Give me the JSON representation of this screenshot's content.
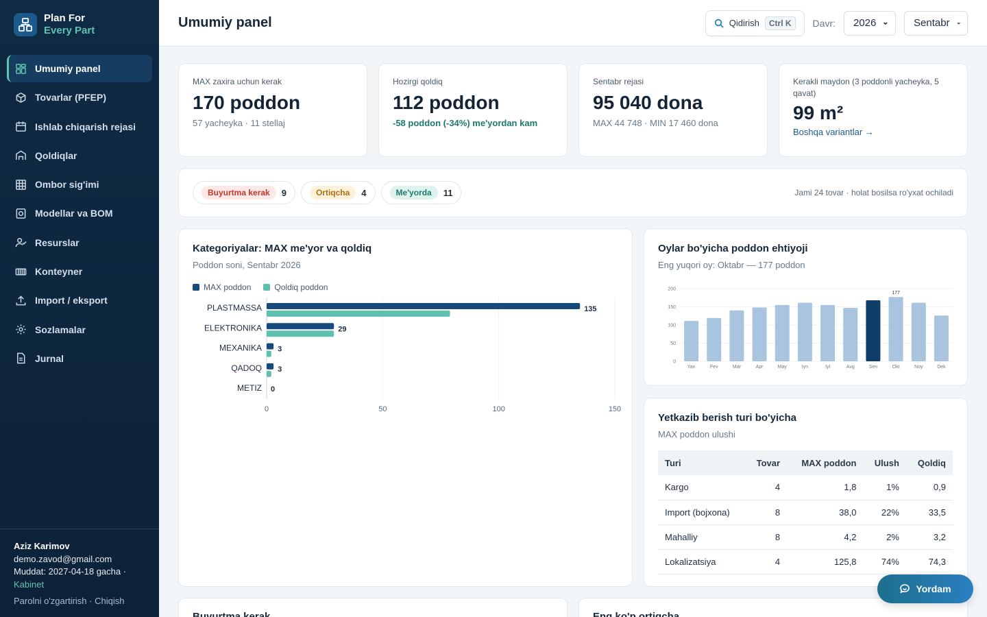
{
  "brand": {
    "line1": "Plan For",
    "line2": "Every Part"
  },
  "nav": [
    {
      "label": "Umumiy panel",
      "icon": "dashboard-icon",
      "active": true
    },
    {
      "label": "Tovarlar (PFEP)",
      "icon": "box-icon"
    },
    {
      "label": "Ishlab chiqarish rejasi",
      "icon": "calendar-icon"
    },
    {
      "label": "Qoldiqlar",
      "icon": "warehouse-icon"
    },
    {
      "label": "Ombor sig'imi",
      "icon": "grid-icon"
    },
    {
      "label": "Modellar va BOM",
      "icon": "model-icon"
    },
    {
      "label": "Resurslar",
      "icon": "user-icon"
    },
    {
      "label": "Konteyner",
      "icon": "container-icon"
    },
    {
      "label": "Import / eksport",
      "icon": "upload-icon"
    },
    {
      "label": "Sozlamalar",
      "icon": "gear-icon"
    },
    {
      "label": "Jurnal",
      "icon": "document-icon"
    }
  ],
  "user": {
    "name": "Aziz Karimov",
    "email": "demo.zavod@gmail.com",
    "term": "Muddat: 2027-04-18 gacha ·",
    "cabinet": "Kabinet",
    "change_password": "Parolni o'zgartirish",
    "separator": "·",
    "logout": "Chiqish"
  },
  "header": {
    "title": "Umumiy panel",
    "search_label": "Qidirish",
    "search_shortcut": "Ctrl K",
    "period_label": "Davr:",
    "year": "2026",
    "month": "Sentabr"
  },
  "stats": [
    {
      "label": "MAX zaxira uchun kerak",
      "value": "170 poddon",
      "sub": "57 yacheyka · 11 stellaj"
    },
    {
      "label": "Hozirgi qoldiq",
      "value": "112 poddon",
      "sub": "-58 poddon (-34%) me'yordan kam"
    },
    {
      "label": "Sentabr rejasi",
      "value": "95 040 dona",
      "sub": "MAX 44 748 · MIN 17 460 dona"
    },
    {
      "label": "Kerakli maydon (3 poddonli yacheyka, 5 qavat)",
      "value": "99 m²",
      "sub": "Boshqa variantlar →"
    }
  ],
  "status": {
    "items": [
      {
        "label": "Buyurtma kerak",
        "count": "9"
      },
      {
        "label": "Ortiqcha",
        "count": "4"
      },
      {
        "label": "Me'yorda",
        "count": "11"
      }
    ],
    "note": "Jami 24 tovar · holat bosilsa ro'yxat ochiladi"
  },
  "colors": {
    "max": "#17497a",
    "stock": "#5fc0b0",
    "month_bar": "#a9c4de",
    "month_bar_active": "#0f3d6c"
  },
  "category_chart": {
    "title": "Kategoriyalar: MAX me'yor va qoldiq",
    "subtitle": "Poddon soni, Sentabr 2026",
    "legend_max": "MAX poddon",
    "legend_stock": "Qoldiq poddon"
  },
  "month_chart": {
    "title": "Oylar bo'yicha poddon ehtiyoji",
    "subtitle": "Eng yuqori oy: Oktabr — 177 poddon"
  },
  "delivery": {
    "title": "Yetkazib berish turi bo'yicha",
    "subtitle": "MAX poddon ulushi",
    "columns": [
      "Turi",
      "Tovar",
      "MAX poddon",
      "Ulush",
      "Qoldiq"
    ],
    "rows": [
      [
        "Kargo",
        "4",
        "1,8",
        "1%",
        "0,9"
      ],
      [
        "Import (bojxona)",
        "8",
        "38,0",
        "22%",
        "33,5"
      ],
      [
        "Mahalliy",
        "8",
        "4,2",
        "2%",
        "3,2"
      ],
      [
        "Lokalizatsiya",
        "4",
        "125,8",
        "74%",
        "74,3"
      ]
    ]
  },
  "bottom": {
    "left_title": "Buyurtma kerak",
    "right_title": "Eng ko'p ortiqcha"
  },
  "help_label": "Yordam",
  "chart_data": [
    {
      "type": "bar",
      "orientation": "horizontal",
      "categories": [
        "PLASTMASSA",
        "ELEKTRONIKA",
        "MEXANIKA",
        "QADOQ",
        "METIZ"
      ],
      "series": [
        {
          "name": "MAX poddon",
          "values": [
            135,
            29,
            3,
            3,
            0
          ]
        },
        {
          "name": "Qoldiq poddon",
          "values": [
            79,
            29,
            2,
            2,
            0
          ]
        }
      ],
      "data_labels": [
        "135",
        "29",
        "3",
        "3",
        "0"
      ],
      "xlim": [
        0,
        150
      ],
      "xticks": [
        "0",
        "50",
        "100",
        "150"
      ],
      "grid": true,
      "legend": "top-left"
    },
    {
      "type": "bar",
      "categories": [
        "Yan",
        "Fev",
        "Mar",
        "Apr",
        "May",
        "Iyn",
        "Iyl",
        "Avg",
        "Sen",
        "Okt",
        "Noy",
        "Dek"
      ],
      "values": [
        111,
        119,
        140,
        148,
        155,
        161,
        155,
        147,
        168,
        177,
        161,
        126
      ],
      "highlight": "Sen",
      "data_labels": {
        "Okt": "177"
      },
      "ylim": [
        0,
        200
      ],
      "yticks": [
        "0",
        "50",
        "100",
        "150",
        "200"
      ],
      "grid": true
    }
  ]
}
